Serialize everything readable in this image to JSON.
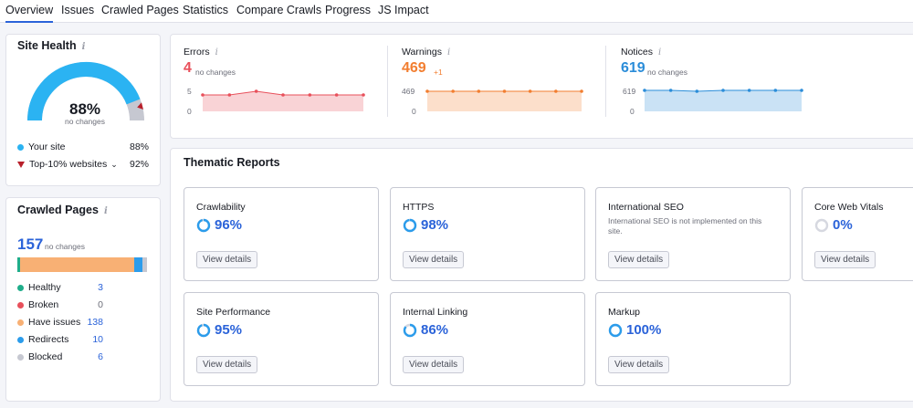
{
  "tabs": [
    "Overview",
    "Issues",
    "Crawled Pages",
    "Statistics",
    "Compare Crawls",
    "Progress",
    "JS Impact"
  ],
  "site_health": {
    "title": "Site Health",
    "percent": "88%",
    "value": 0.88,
    "sub": "no changes",
    "legend": [
      {
        "label": "Your site",
        "value": "88%",
        "color": "#2bb3f2"
      },
      {
        "label": "Top-10% websites",
        "value": "92%",
        "color": "#b8202b"
      }
    ]
  },
  "crawled_pages": {
    "title": "Crawled Pages",
    "total": "157",
    "sub": "no changes",
    "bar": [
      {
        "color": "#1fad8a",
        "value": 3
      },
      {
        "color": "#f8b074",
        "value": 138
      },
      {
        "color": "#2b9ceb",
        "value": 10
      },
      {
        "color": "#c6c8d1",
        "value": 6
      }
    ],
    "rows": [
      {
        "label": "Healthy",
        "value": "3",
        "color": "#1fad8a"
      },
      {
        "label": "Broken",
        "value": "0",
        "color": "#e8505b"
      },
      {
        "label": "Have issues",
        "value": "138",
        "color": "#f8b074"
      },
      {
        "label": "Redirects",
        "value": "10",
        "color": "#2b9ceb"
      },
      {
        "label": "Blocked",
        "value": "6",
        "color": "#c6c8d1"
      }
    ]
  },
  "stats": {
    "errors": {
      "label": "Errors",
      "value": "4",
      "change": "no changes",
      "axis_top": "5",
      "axis_bottom": "0",
      "color": "#e8505b"
    },
    "warnings": {
      "label": "Warnings",
      "value": "469",
      "change": "+1",
      "axis_top": "469",
      "axis_bottom": "0",
      "color": "#f27e30"
    },
    "notices": {
      "label": "Notices",
      "value": "619",
      "change": "no changes",
      "axis_top": "619",
      "axis_bottom": "0",
      "color": "#2b8dd9"
    }
  },
  "thematic": {
    "title": "Thematic Reports",
    "button_label": "View details",
    "reports": [
      {
        "name": "Crawlability",
        "pct": "96%",
        "value": 0.96
      },
      {
        "name": "HTTPS",
        "pct": "98%",
        "value": 0.98
      },
      {
        "name": "International SEO",
        "note": "International SEO is not implemented on this site."
      },
      {
        "name": "Core Web Vitals",
        "pct": "0%",
        "value": 0
      },
      {
        "name": "Site Performance",
        "pct": "95%",
        "value": 0.95
      },
      {
        "name": "Internal Linking",
        "pct": "86%",
        "value": 0.86
      },
      {
        "name": "Markup",
        "pct": "100%",
        "value": 1.0
      }
    ]
  }
}
